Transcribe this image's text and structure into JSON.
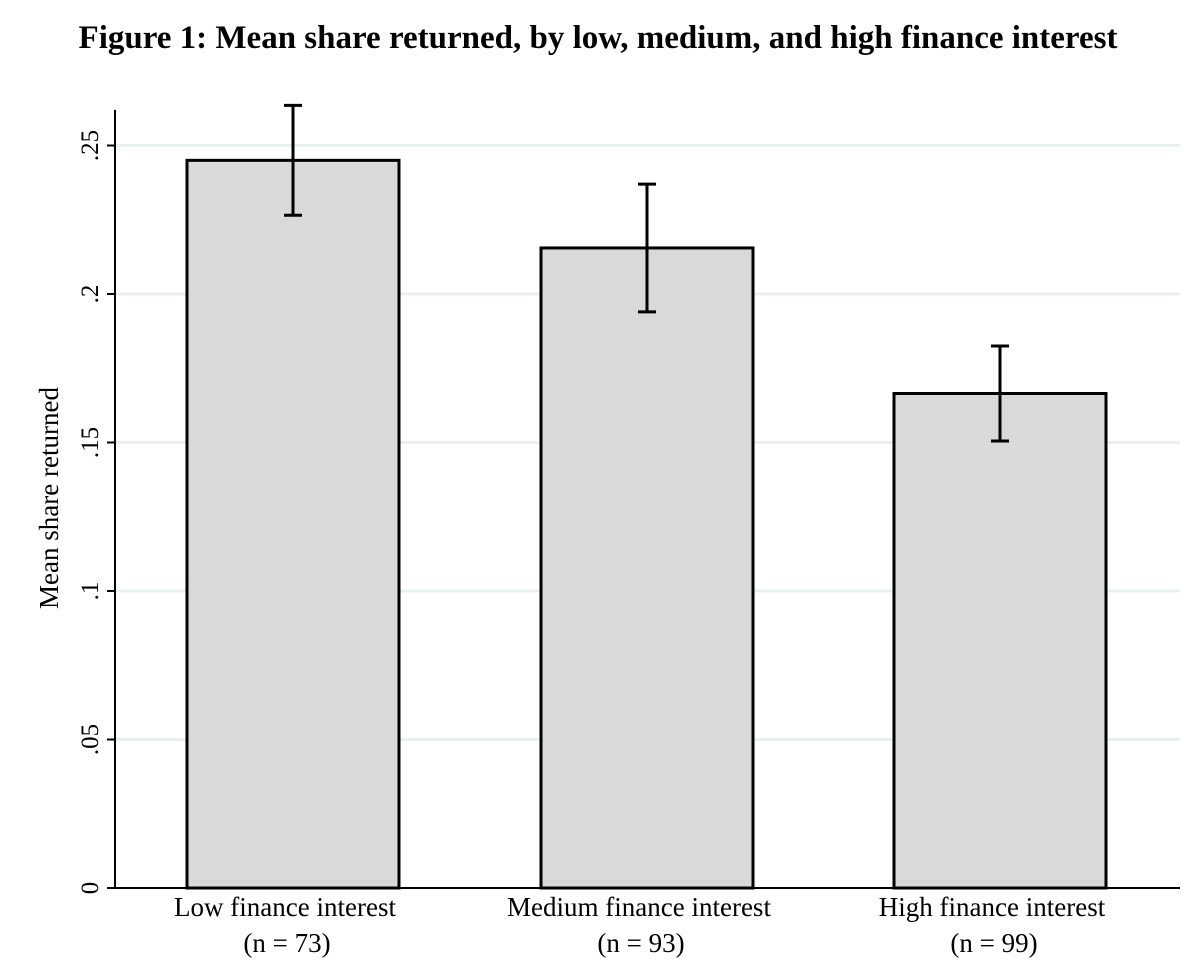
{
  "chart_data": {
    "type": "bar",
    "title": "Figure 1: Mean share returned, by low, medium, and high finance interest",
    "ylabel": "Mean share returned",
    "xlabel": "",
    "ylim": [
      0,
      0.262
    ],
    "yticks": [
      {
        "value": 0,
        "label": "0"
      },
      {
        "value": 0.05,
        "label": ".05"
      },
      {
        "value": 0.1,
        "label": ".1"
      },
      {
        "value": 0.15,
        "label": ".15"
      },
      {
        "value": 0.2,
        "label": ".2"
      },
      {
        "value": 0.25,
        "label": ".25"
      }
    ],
    "grid": true,
    "categories": [
      {
        "label": "Low finance interest",
        "sublabel": "(n = 73)"
      },
      {
        "label": "Medium finance interest",
        "sublabel": "(n = 93)"
      },
      {
        "label": "High finance interest",
        "sublabel": "(n = 99)"
      }
    ],
    "values": [
      0.245,
      0.2155,
      0.1665
    ],
    "error_bars": [
      {
        "low": 0.2265,
        "high": 0.2635
      },
      {
        "low": 0.194,
        "high": 0.237
      },
      {
        "low": 0.1505,
        "high": 0.1825
      }
    ],
    "colors": {
      "bar_fill": "#d9d9d9",
      "bar_stroke": "#000000",
      "grid": "#eaf0f0",
      "axis": "#000000"
    }
  }
}
